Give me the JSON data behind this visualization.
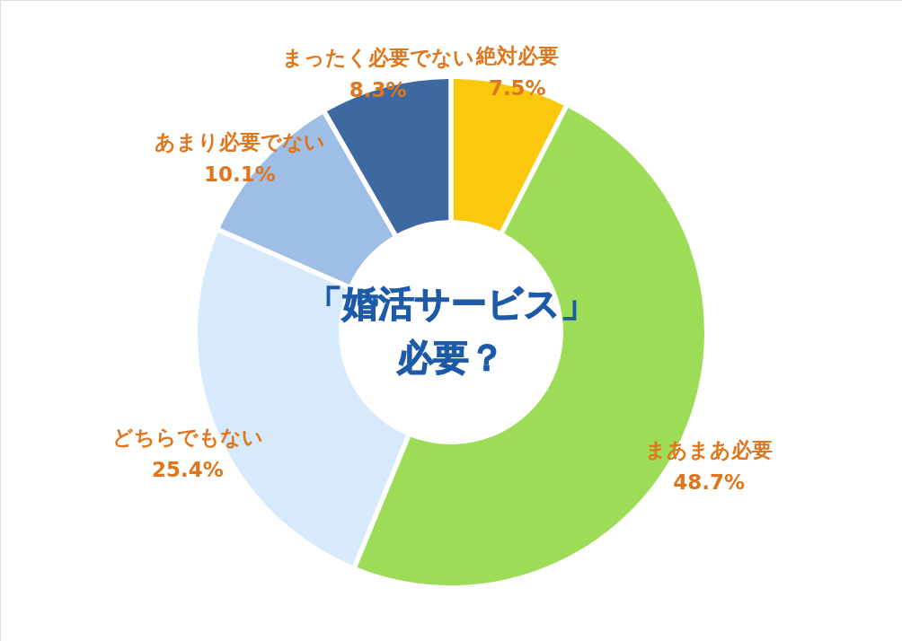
{
  "chart_data": {
    "type": "donut",
    "title": "「婚活サービス」",
    "subtitle": "必要？",
    "categories": [
      "絶対必要",
      "まあまあ必要",
      "どちらでもない",
      "あまり必要でない",
      "まったく必要でない"
    ],
    "values": [
      7.5,
      48.7,
      25.4,
      10.1,
      8.3
    ],
    "value_labels": [
      "7.5%",
      "48.7%",
      "25.4%",
      "10.1%",
      "8.3%"
    ],
    "colors": [
      "#fbc80e",
      "#9cdc56",
      "#d7eafb",
      "#9ebee5",
      "#3e69a0"
    ]
  }
}
